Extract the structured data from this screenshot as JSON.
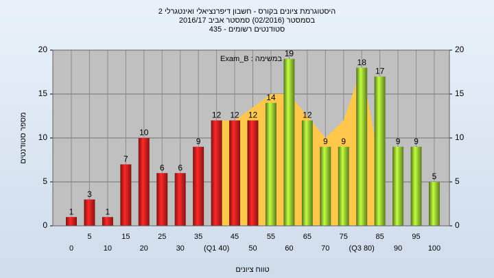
{
  "chart_data": {
    "type": "bar",
    "title": "היסטוגרמת ציונים בקורס - חשבון דיפרנציאלי ואינטגרלי 2",
    "subtitle": "בסמסטר  (02/2016)  סמסטר אביב 2016/17",
    "subtitle2": "סטודנטים רשומים - 435",
    "annotation": "במשימה : Exam_B",
    "y_label": "מספר סטודנטים",
    "x_label": "טווח ציונים",
    "categories": [
      "0",
      "5",
      "10",
      "15",
      "20",
      "25",
      "30",
      "35",
      "(Q1 40)",
      "45",
      "50",
      "55",
      "60",
      "65",
      "70",
      "75",
      "(Q3 80)",
      "85",
      "90",
      "95",
      "100"
    ],
    "values": [
      1,
      3,
      1,
      7,
      10,
      6,
      6,
      9,
      12,
      12,
      12,
      14,
      19,
      12,
      9,
      9,
      18,
      17,
      9,
      9,
      5
    ],
    "colors": [
      "#e02020",
      "#e02020",
      "#e02020",
      "#e02020",
      "#e02020",
      "#e02020",
      "#e02020",
      "#e02020",
      "#e02020",
      "#e02020",
      "#e02020",
      "#9acd32",
      "#9acd32",
      "#9acd32",
      "#9acd32",
      "#9acd32",
      "#9acd32",
      "#9acd32",
      "#9acd32",
      "#9acd32",
      "#9acd32"
    ],
    "area": {
      "color": "#ffc84a",
      "values": [
        null,
        null,
        null,
        null,
        null,
        null,
        null,
        null,
        12,
        12,
        13.5,
        15,
        15,
        12.5,
        10,
        12,
        18,
        7,
        null,
        null,
        null
      ]
    },
    "ylim": [
      0,
      20
    ],
    "yticks": [
      0,
      5,
      10,
      15,
      20
    ],
    "grid": true
  }
}
